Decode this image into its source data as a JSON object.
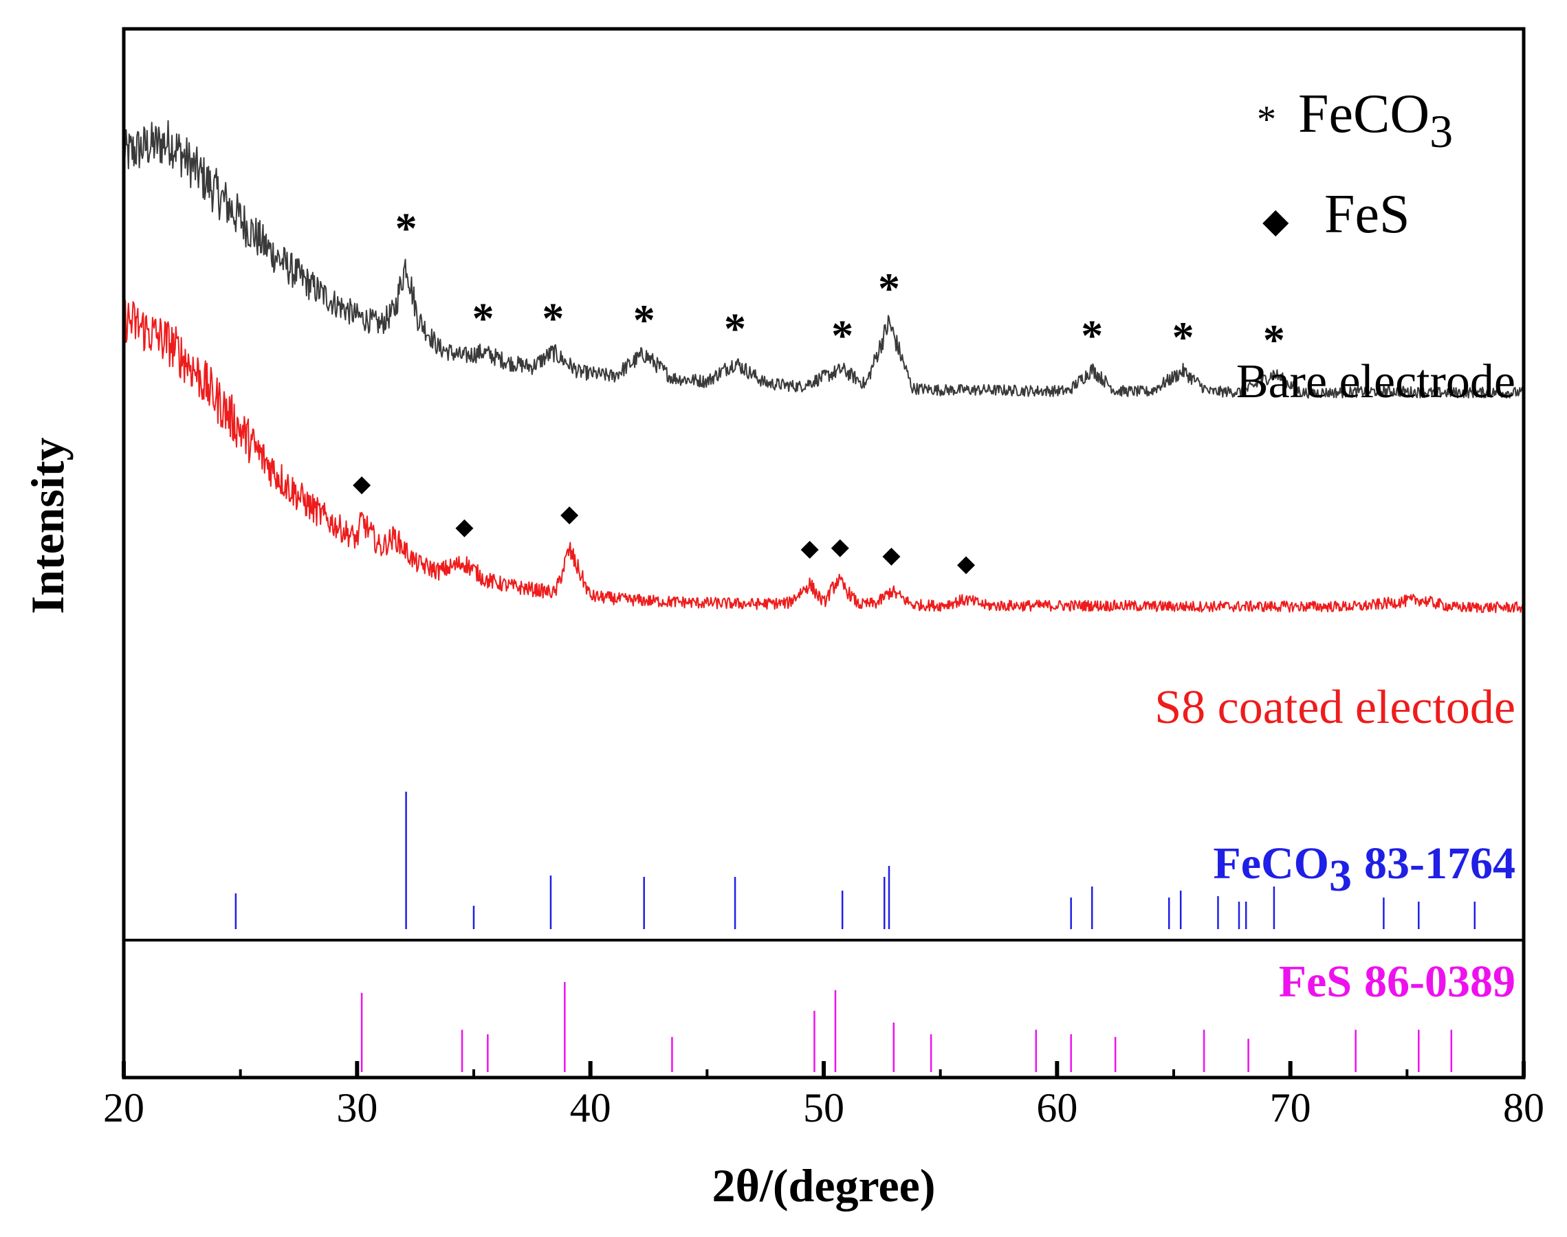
{
  "chart_data": {
    "type": "line",
    "title": "",
    "xlabel": "2θ/(degree)",
    "ylabel": "Intensity",
    "xlim": [
      20,
      80
    ],
    "xticks": [
      20,
      30,
      40,
      50,
      60,
      70,
      80
    ],
    "yticks": [],
    "legend": {
      "placement": "top-right",
      "entries": [
        {
          "symbol": "*",
          "label": "FeCO",
          "subscript": "3"
        },
        {
          "symbol": "◆",
          "label": "FeS",
          "subscript": ""
        }
      ]
    },
    "series": [
      {
        "name": "Bare electrode",
        "color": "#3a3a3a",
        "x": [
          20,
          21,
          22,
          23,
          24,
          25,
          26,
          27,
          28,
          29,
          30,
          31,
          31.6,
          32.1,
          32.6,
          33.5,
          34.5,
          35.4,
          36.5,
          37.5,
          38.4,
          39.5,
          41,
          42.3,
          43.5,
          45,
          46.2,
          47.5,
          49,
          50.8,
          51.8,
          52.8,
          53.8,
          55,
          57,
          59,
          60.5,
          61.5,
          62.5,
          64,
          65.4,
          66.5,
          68,
          69.3,
          70.5,
          72,
          74,
          76,
          78,
          80
        ],
        "y": [
          8.8,
          8.9,
          8.95,
          8.65,
          8.35,
          8.05,
          7.75,
          7.5,
          7.28,
          7.08,
          6.92,
          6.82,
          6.98,
          7.55,
          6.9,
          6.55,
          6.45,
          6.5,
          6.38,
          6.33,
          6.5,
          6.27,
          6.22,
          6.48,
          6.2,
          6.16,
          6.38,
          6.14,
          6.1,
          6.3,
          6.12,
          6.85,
          6.08,
          6.06,
          6.06,
          6.05,
          6.05,
          6.3,
          6.05,
          6.04,
          6.28,
          6.04,
          6.04,
          6.25,
          6.03,
          6.03,
          6.05,
          6.03,
          6.03,
          6.03
        ],
        "peak_markers": {
          "symbol": "*",
          "x": [
            32.1,
            35.4,
            38.4,
            42.3,
            46.2,
            50.8,
            52.8,
            61.5,
            65.4,
            69.3
          ]
        }
      },
      {
        "name": "S8 coated electode",
        "color": "#ee1c1c",
        "x": [
          20,
          21,
          22,
          23,
          24,
          25,
          26,
          27,
          28,
          29,
          30,
          30.2,
          31,
          31.6,
          32.5,
          33.5,
          34.6,
          35.5,
          36.5,
          37.5,
          38.5,
          39.1,
          40,
          41.5,
          43,
          45,
          47,
          48.5,
          49.4,
          50,
          50.6,
          51.5,
          52.3,
          52.9,
          53.8,
          55,
          56.1,
          57,
          59,
          62,
          65,
          68,
          71,
          73,
          75.5,
          77,
          80
        ],
        "y": [
          6.9,
          6.75,
          6.6,
          6.3,
          5.95,
          5.6,
          5.25,
          4.95,
          4.7,
          4.5,
          4.32,
          4.55,
          4.22,
          4.35,
          4.05,
          3.95,
          4.05,
          3.85,
          3.78,
          3.74,
          3.7,
          4.2,
          3.66,
          3.62,
          3.6,
          3.58,
          3.57,
          3.58,
          3.8,
          3.58,
          3.85,
          3.56,
          3.58,
          3.72,
          3.56,
          3.55,
          3.62,
          3.55,
          3.55,
          3.55,
          3.54,
          3.54,
          3.54,
          3.54,
          3.62,
          3.53,
          3.53
        ],
        "peak_markers": {
          "symbol": "◆",
          "x": [
            30.2,
            34.6,
            39.1,
            49.4,
            50.7,
            52.9,
            56.1
          ]
        }
      }
    ],
    "reference_patterns": [
      {
        "name": "FeCO",
        "subscript": "3",
        "card": "83-1764",
        "color": "#1f1fe6",
        "positions": [
          24.8,
          32.1,
          35.0,
          38.3,
          42.3,
          46.2,
          50.8,
          52.6,
          52.8,
          60.6,
          61.5,
          64.8,
          65.3,
          66.9,
          67.8,
          68.1,
          69.3,
          74.0,
          75.5,
          77.9,
          80.0
        ],
        "relative_intensity": [
          0.26,
          1.0,
          0.17,
          0.39,
          0.38,
          0.38,
          0.28,
          0.38,
          0.46,
          0.23,
          0.31,
          0.23,
          0.28,
          0.24,
          0.2,
          0.2,
          0.31,
          0.23,
          0.2,
          0.2,
          0.23
        ]
      },
      {
        "name": "FeS",
        "subscript": "",
        "card": "86-0389",
        "color": "#ee11ee",
        "positions": [
          30.2,
          34.5,
          35.6,
          38.9,
          43.5,
          49.6,
          50.5,
          53.0,
          54.6,
          59.1,
          60.6,
          62.5,
          66.3,
          68.2,
          72.8,
          75.5,
          76.9
        ],
        "relative_intensity": [
          0.88,
          0.47,
          0.42,
          1.0,
          0.39,
          0.68,
          0.91,
          0.55,
          0.42,
          0.47,
          0.42,
          0.39,
          0.47,
          0.37,
          0.47,
          0.47,
          0.47
        ]
      }
    ]
  }
}
